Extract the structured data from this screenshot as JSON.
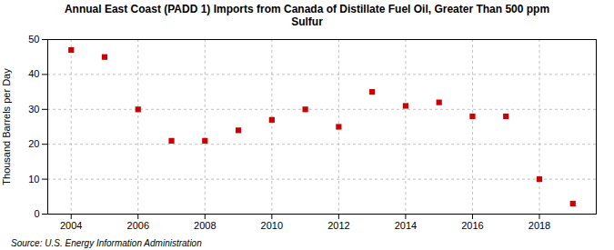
{
  "chart_data": {
    "type": "scatter",
    "title": "Annual East Coast (PADD 1) Imports from Canada of Distillate Fuel Oil, Greater Than 500 ppm\nSulfur",
    "ylabel": "Thousand Barrels per Day",
    "source": "Source: U.S. Energy Information Administration",
    "x": [
      2004,
      2005,
      2006,
      2007,
      2008,
      2009,
      2010,
      2011,
      2012,
      2013,
      2014,
      2015,
      2016,
      2017,
      2018,
      2019
    ],
    "values": [
      47.0,
      45.0,
      30.0,
      21.0,
      21.0,
      24.0,
      27.0,
      30.0,
      25.0,
      35.0,
      31.0,
      32.0,
      28.0,
      28.0,
      10.0,
      3.0
    ],
    "color": "#cc0000",
    "marker": "square",
    "xlim": [
      2003.3,
      2019.7
    ],
    "ylim": [
      0,
      50
    ],
    "xticks": [
      2004,
      2006,
      2008,
      2010,
      2012,
      2014,
      2016,
      2018
    ],
    "yticks": [
      0,
      10,
      20,
      30,
      40,
      50
    ],
    "grid": true
  }
}
